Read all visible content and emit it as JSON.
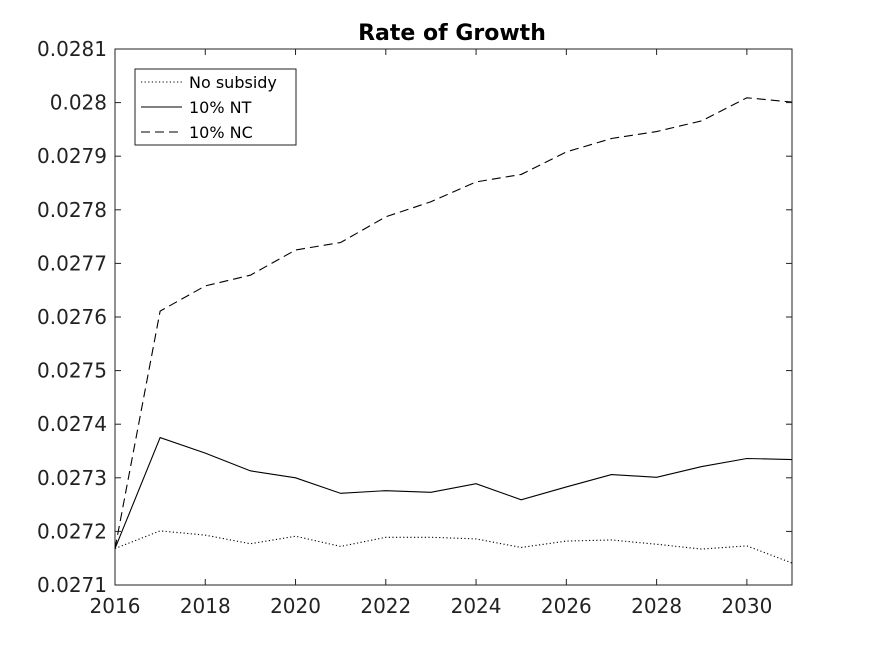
{
  "chart_data": {
    "type": "line",
    "title": "Rate of Growth",
    "xlabel": "",
    "ylabel": "",
    "xlim": [
      2016,
      2031
    ],
    "ylim": [
      0.0271,
      0.0281
    ],
    "xticks": [
      "2016",
      "2018",
      "2020",
      "2022",
      "2024",
      "2026",
      "2028",
      "2030"
    ],
    "yticks": [
      "0.0271",
      "0.0272",
      "0.0273",
      "0.0274",
      "0.0275",
      "0.0276",
      "0.0277",
      "0.0278",
      "0.0279",
      "0.028",
      "0.0281"
    ],
    "grid": false,
    "legend_position": "top-left",
    "x": [
      2016,
      2017,
      2018,
      2019,
      2020,
      2021,
      2022,
      2023,
      2024,
      2025,
      2026,
      2027,
      2028,
      2029,
      2030,
      2031
    ],
    "series": [
      {
        "name": "No subsidy",
        "style": "dotted",
        "color": "#000000",
        "values": [
          0.027168,
          0.027201,
          0.027193,
          0.027177,
          0.027191,
          0.027172,
          0.027189,
          0.027189,
          0.027186,
          0.02717,
          0.027182,
          0.027184,
          0.027176,
          0.027167,
          0.027173,
          0.027141
        ]
      },
      {
        "name": "10% NT",
        "style": "solid",
        "color": "#000000",
        "values": [
          0.027168,
          0.027375,
          0.027346,
          0.027313,
          0.0273,
          0.027271,
          0.027276,
          0.027273,
          0.027289,
          0.027259,
          0.027283,
          0.027306,
          0.027301,
          0.027321,
          0.027336,
          0.027334
        ]
      },
      {
        "name": "10% NC",
        "style": "dashed",
        "color": "#000000",
        "values": [
          0.027168,
          0.027611,
          0.027658,
          0.027678,
          0.027725,
          0.027739,
          0.027787,
          0.027815,
          0.027852,
          0.027866,
          0.027908,
          0.027933,
          0.027946,
          0.027966,
          0.028009,
          0.028001
        ]
      }
    ]
  }
}
